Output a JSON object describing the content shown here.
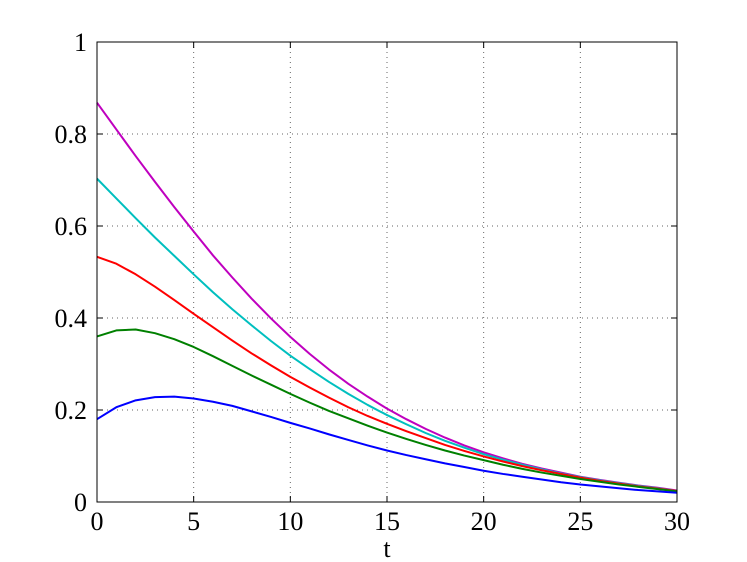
{
  "chart_data": {
    "type": "line",
    "xlabel": "t",
    "ylabel": "",
    "title": "",
    "xlim": [
      0,
      30
    ],
    "ylim": [
      0,
      1
    ],
    "xticks": [
      0,
      5,
      10,
      15,
      20,
      25,
      30
    ],
    "yticks": [
      0,
      0.2,
      0.4,
      0.6,
      0.8,
      1
    ],
    "xtick_labels": [
      "0",
      "5",
      "10",
      "15",
      "20",
      "25",
      "30"
    ],
    "ytick_labels": [
      "0",
      "0.2",
      "0.4",
      "0.6",
      "0.8",
      "1"
    ],
    "grid": true,
    "x": [
      0,
      1,
      2,
      3,
      4,
      5,
      6,
      7,
      8,
      9,
      10,
      11,
      12,
      13,
      14,
      15,
      16,
      17,
      18,
      19,
      20,
      21,
      22,
      23,
      24,
      25,
      26,
      27,
      28,
      29,
      30
    ],
    "series": [
      {
        "color": "#bf00bf",
        "values": [
          0.868,
          0.81,
          0.752,
          0.696,
          0.641,
          0.588,
          0.536,
          0.488,
          0.442,
          0.399,
          0.359,
          0.322,
          0.288,
          0.257,
          0.229,
          0.203,
          0.18,
          0.159,
          0.14,
          0.123,
          0.108,
          0.095,
          0.083,
          0.073,
          0.064,
          0.055,
          0.048,
          0.042,
          0.036,
          0.031,
          0.025
        ]
      },
      {
        "color": "#00bfbf",
        "values": [
          0.703,
          0.66,
          0.617,
          0.575,
          0.535,
          0.495,
          0.456,
          0.419,
          0.384,
          0.35,
          0.318,
          0.289,
          0.261,
          0.235,
          0.211,
          0.189,
          0.169,
          0.15,
          0.133,
          0.118,
          0.104,
          0.092,
          0.081,
          0.071,
          0.062,
          0.054,
          0.047,
          0.041,
          0.035,
          0.03,
          0.024
        ]
      },
      {
        "color": "#ff0000",
        "values": [
          0.533,
          0.518,
          0.495,
          0.468,
          0.439,
          0.409,
          0.38,
          0.351,
          0.323,
          0.297,
          0.272,
          0.249,
          0.227,
          0.206,
          0.187,
          0.17,
          0.154,
          0.139,
          0.124,
          0.111,
          0.099,
          0.088,
          0.078,
          0.069,
          0.061,
          0.053,
          0.046,
          0.04,
          0.034,
          0.029,
          0.024
        ]
      },
      {
        "color": "#008000",
        "values": [
          0.36,
          0.373,
          0.375,
          0.367,
          0.354,
          0.337,
          0.317,
          0.296,
          0.275,
          0.255,
          0.235,
          0.216,
          0.198,
          0.182,
          0.166,
          0.151,
          0.137,
          0.124,
          0.112,
          0.101,
          0.091,
          0.081,
          0.072,
          0.064,
          0.057,
          0.05,
          0.044,
          0.038,
          0.033,
          0.028,
          0.023
        ]
      },
      {
        "color": "#0000ff",
        "values": [
          0.18,
          0.206,
          0.221,
          0.228,
          0.229,
          0.225,
          0.218,
          0.209,
          0.197,
          0.185,
          0.172,
          0.16,
          0.147,
          0.135,
          0.123,
          0.112,
          0.102,
          0.093,
          0.084,
          0.076,
          0.068,
          0.061,
          0.055,
          0.049,
          0.043,
          0.038,
          0.034,
          0.03,
          0.026,
          0.023,
          0.02
        ]
      }
    ]
  }
}
